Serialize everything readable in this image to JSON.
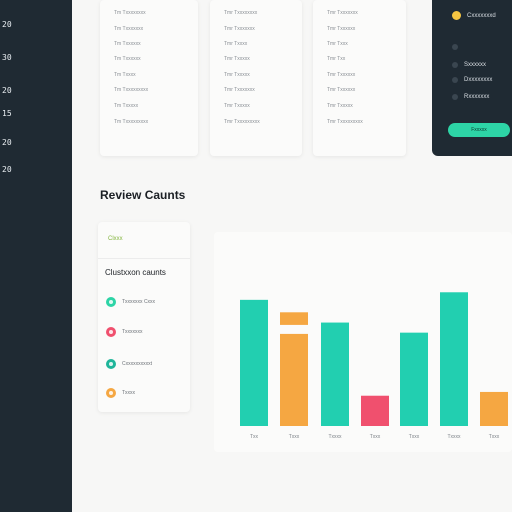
{
  "sidebar": {
    "numbers": [
      "20",
      "30",
      "20",
      "15",
      "20",
      "20"
    ]
  },
  "cards": [
    {
      "lines": [
        "Tm  Txxxxxxxx",
        "Tm  Txxxxxxx",
        "Tm  Txxxxxx",
        "Tm  Txxxxxx",
        "Tm  Txxxx",
        "Tm  Txxxxxxxxx",
        "Tm  Txxxxx",
        "Tm  Txxxxxxxxx"
      ]
    },
    {
      "lines": [
        "Tmr  Txxxxxxxx",
        "Tmr  Txxxxxxx",
        "Tmr  Txxxx",
        "Tmr  Txxxxx",
        "Tmr  Txxxxx",
        "Tmr  Txxxxxxx",
        "Tmr  Txxxxx",
        "Tmr  Txxxxxxxxx"
      ]
    },
    {
      "lines": [
        "Tmr  Txxxxxxx",
        "Tmr  Txxxxxx",
        "Tmr  Txxx",
        "Tmr  Txx",
        "Tmr  Txxxxxx",
        "Tmr  Txxxxxx",
        "Tmr  Txxxxx",
        "Tmr  Txxxxxxxxx"
      ]
    }
  ],
  "right_panel": {
    "items": [
      {
        "label": "Cxxxxxxxd",
        "active": true
      },
      {
        "label": "",
        "active": false
      },
      {
        "label": "Sxxxxxx",
        "active": false
      },
      {
        "label": "Dxxxxxxxx",
        "active": false
      },
      {
        "label": "Rxxxxxxx",
        "active": false
      }
    ],
    "button_label": "Fxxxxx"
  },
  "section_title": "Review Caunts",
  "legend": {
    "tag": "Clxxx",
    "heading": "Clustxxon caunts",
    "items": [
      {
        "label": "Txxxxxxx Cxxx",
        "color": "#2dd4a6"
      },
      {
        "label": "Txxxxxxx",
        "color": "#f0506e"
      },
      {
        "label": "Cxxxxxxxxxxt",
        "color": "#1fb59a"
      },
      {
        "label": "Txxxx",
        "color": "#f5a742"
      }
    ]
  },
  "colors": {
    "teal": "#22cfb0",
    "orange": "#f5a742",
    "pink": "#f0506e"
  },
  "chart_data": {
    "type": "bar",
    "categories": [
      "Txx",
      "Txxx",
      "Txxxx",
      "Txxx",
      "Txxx",
      "Txxxx",
      "Txxx"
    ],
    "series": [
      {
        "values": [
          100,
          0,
          82,
          0,
          74,
          106,
          0
        ],
        "color": "#22cfb0"
      },
      {
        "values": [
          0,
          73,
          0,
          0,
          0,
          0,
          27
        ],
        "color": "#f5a742"
      },
      {
        "values": [
          0,
          0,
          0,
          24,
          0,
          0,
          0
        ],
        "color": "#f0506e"
      }
    ],
    "stacked_extra": [
      {
        "category_index": 1,
        "value": 10,
        "color": "#f5a742",
        "gap": 9
      }
    ],
    "ylim": [
      0,
      130
    ],
    "grid": false
  }
}
